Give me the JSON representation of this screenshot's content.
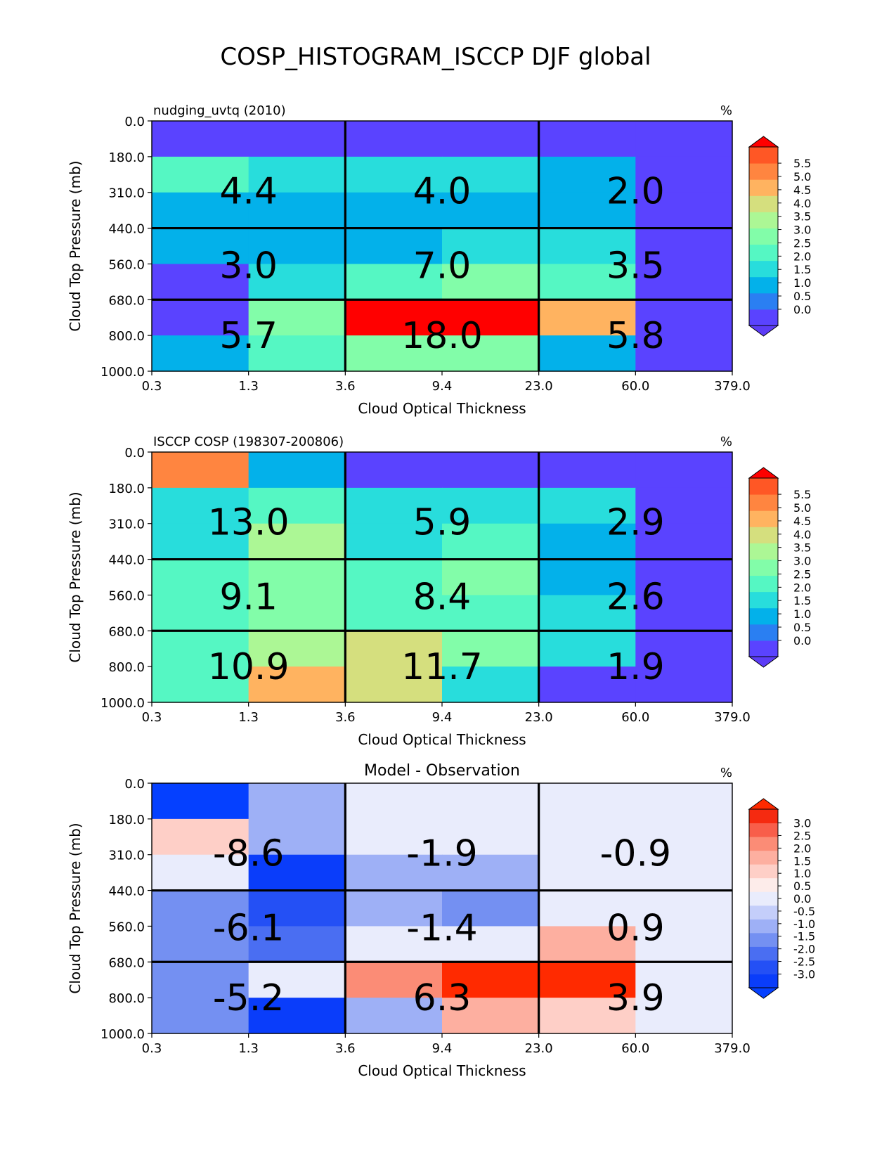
{
  "page_title": "COSP_HISTOGRAM_ISCCP DJF global",
  "chart_data": [
    {
      "type": "heatmap",
      "title": "",
      "left_title": "nudging_uvtq (2010)",
      "units": "%",
      "xlabel": "Cloud Optical Thickness",
      "ylabel": "Cloud Top Pressure (mb)",
      "x_ticks": [
        "0.3",
        "1.3",
        "3.6",
        "9.4",
        "23.0",
        "60.0",
        "379.0"
      ],
      "y_ticks": [
        "0.0",
        "180.0",
        "310.0",
        "440.0",
        "560.0",
        "680.0",
        "800.0",
        "1000.0"
      ],
      "colorbar_ticks": [
        "0.0",
        "0.5",
        "1.0",
        "1.5",
        "2.0",
        "2.5",
        "3.0",
        "3.5",
        "4.0",
        "4.5",
        "5.0",
        "5.5"
      ],
      "colorbar_range": [
        0.0,
        5.5
      ],
      "colorbar_extend": "both",
      "colormap": [
        "#5c3cf6",
        "#5a43ff",
        "#2a7ff2",
        "#03b1ea",
        "#28dddc",
        "#55f7c3",
        "#82fda9",
        "#acf795",
        "#d5df7e",
        "#ffb360",
        "#ff8540",
        "#ff5725",
        "#ff0000"
      ],
      "cell_values": [
        [
          0.2,
          0.2,
          0.2,
          0.2,
          0.2,
          0.2
        ],
        [
          2.0,
          1.5,
          1.5,
          1.5,
          1.0,
          0.2
        ],
        [
          1.0,
          1.0,
          1.0,
          1.0,
          1.0,
          0.2
        ],
        [
          1.0,
          1.0,
          1.0,
          1.5,
          1.5,
          0.2
        ],
        [
          0.2,
          1.5,
          2.4,
          2.9,
          2.4,
          0.2
        ],
        [
          0.2,
          2.9,
          5.6,
          5.6,
          4.2,
          0.2
        ],
        [
          1.0,
          2.0,
          2.9,
          2.9,
          1.0,
          0.2
        ]
      ],
      "box_labels": [
        [
          "4.4",
          "4.0",
          "2.0"
        ],
        [
          "3.0",
          "7.0",
          "3.5"
        ],
        [
          "5.7",
          "18.0",
          "5.8"
        ]
      ]
    },
    {
      "type": "heatmap",
      "title": "",
      "left_title": "ISCCP COSP (198307-200806)",
      "units": "%",
      "xlabel": "Cloud Optical Thickness",
      "ylabel": "Cloud Top Pressure (mb)",
      "x_ticks": [
        "0.3",
        "1.3",
        "3.6",
        "9.4",
        "23.0",
        "60.0",
        "379.0"
      ],
      "y_ticks": [
        "0.0",
        "180.0",
        "310.0",
        "440.0",
        "560.0",
        "680.0",
        "800.0",
        "1000.0"
      ],
      "colorbar_ticks": [
        "0.0",
        "0.5",
        "1.0",
        "1.5",
        "2.0",
        "2.5",
        "3.0",
        "3.5",
        "4.0",
        "4.5",
        "5.0",
        "5.5"
      ],
      "colorbar_range": [
        0.0,
        5.5
      ],
      "colorbar_extend": "both",
      "colormap": [
        "#5c3cf6",
        "#5a43ff",
        "#2a7ff2",
        "#03b1ea",
        "#28dddc",
        "#55f7c3",
        "#82fda9",
        "#acf795",
        "#d5df7e",
        "#ffb360",
        "#ff8540",
        "#ff5725",
        "#ff0000"
      ],
      "cell_values": [
        [
          4.7,
          1.0,
          0.2,
          0.2,
          0.2,
          0.2
        ],
        [
          1.5,
          2.0,
          1.5,
          1.5,
          1.5,
          0.2
        ],
        [
          1.5,
          3.2,
          1.5,
          2.0,
          1.0,
          0.2
        ],
        [
          2.0,
          2.9,
          2.0,
          2.9,
          1.0,
          0.2
        ],
        [
          2.0,
          2.9,
          2.4,
          2.4,
          1.5,
          0.2
        ],
        [
          2.0,
          3.2,
          3.7,
          2.9,
          1.5,
          0.2
        ],
        [
          2.0,
          4.2,
          3.7,
          1.5,
          0.2,
          0.2
        ]
      ],
      "box_labels": [
        [
          "13.0",
          "5.9",
          "2.9"
        ],
        [
          "9.1",
          "8.4",
          "2.6"
        ],
        [
          "10.9",
          "11.7",
          "1.9"
        ]
      ]
    },
    {
      "type": "heatmap",
      "title": "Model - Observation",
      "left_title": "",
      "units": "%",
      "xlabel": "Cloud Optical Thickness",
      "ylabel": "Cloud Top Pressure (mb)",
      "x_ticks": [
        "0.3",
        "1.3",
        "3.6",
        "9.4",
        "23.0",
        "60.0",
        "379.0"
      ],
      "y_ticks": [
        "0.0",
        "180.0",
        "310.0",
        "440.0",
        "560.0",
        "680.0",
        "800.0",
        "1000.0"
      ],
      "colorbar_ticks": [
        "-3.0",
        "-2.5",
        "-2.0",
        "-1.5",
        "-1.0",
        "-0.5",
        "0.0",
        "0.5",
        "1.0",
        "1.5",
        "2.0",
        "2.5",
        "3.0"
      ],
      "colorbar_range": [
        -3.0,
        3.0
      ],
      "colorbar_extend": "both",
      "colormap": [
        "#0540ff",
        "#0a3dfa",
        "#2450f5",
        "#4a6ef2",
        "#7490f2",
        "#9eb0f6",
        "#c4cefa",
        "#e9ecfc",
        "#fdecea",
        "#fecfc7",
        "#fdafa0",
        "#fb8c76",
        "#f85e4a",
        "#f52a10",
        "#ff2a00"
      ],
      "cell_values": [
        [
          -3.2,
          -0.7,
          -0.2,
          -0.2,
          -0.2,
          -0.2
        ],
        [
          0.7,
          -0.7,
          0.2,
          0.2,
          -0.2,
          0.2
        ],
        [
          -0.2,
          -2.7,
          -0.7,
          -0.7,
          -0.2,
          -0.2
        ],
        [
          -1.2,
          -2.2,
          -0.7,
          -1.2,
          0.2,
          -0.2
        ],
        [
          -1.2,
          -1.7,
          0.2,
          0.2,
          1.2,
          -0.2
        ],
        [
          -1.2,
          -0.2,
          1.7,
          3.2,
          3.2,
          0.2
        ],
        [
          -1.2,
          -2.7,
          -0.7,
          1.2,
          0.7,
          -0.2
        ]
      ],
      "box_labels": [
        [
          "-8.6",
          "-1.9",
          "-0.9"
        ],
        [
          "-6.1",
          "-1.4",
          "0.9"
        ],
        [
          "-5.2",
          "6.3",
          "3.9"
        ]
      ]
    }
  ]
}
